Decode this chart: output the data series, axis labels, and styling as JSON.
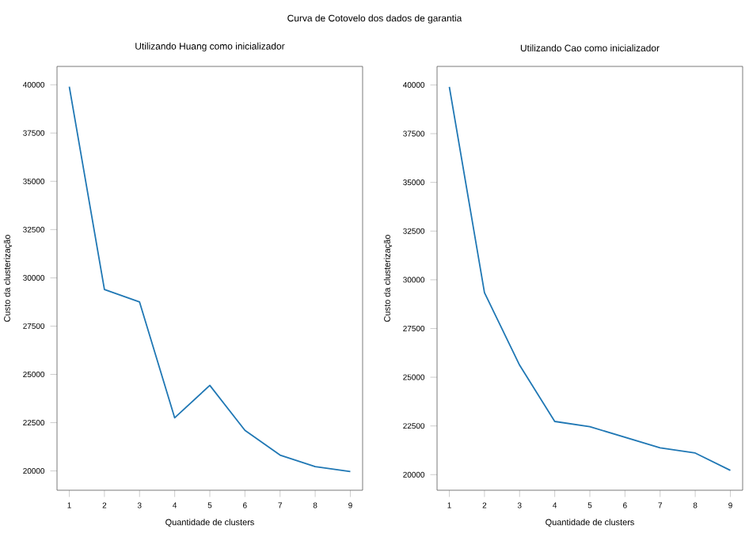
{
  "chart_data": [
    {
      "type": "line",
      "title": "Utilizando Huang como inicializador",
      "xlabel": "Quantidade de clusters",
      "ylabel": "Custo da clusterização",
      "annotations": [
        "Curva de Cotovelo dos dados de garantia"
      ],
      "x": [
        1,
        2,
        3,
        4,
        5,
        6,
        7,
        8,
        9
      ],
      "xlim": [
        0.65,
        9.35
      ],
      "xticks": [
        1,
        2,
        3,
        4,
        5,
        6,
        7,
        8,
        9
      ],
      "ylim": [
        19000,
        40950
      ],
      "yticks": [
        20000,
        22500,
        25000,
        27500,
        30000,
        32500,
        35000,
        37500,
        40000
      ],
      "series": [
        {
          "color": "#1f77b4",
          "values": [
            39900,
            29400,
            28750,
            22750,
            24430,
            22100,
            20820,
            20220,
            19970
          ]
        }
      ]
    },
    {
      "type": "line",
      "title": "Utilizando Cao como inicializador",
      "xlabel": "Quantidade de clusters",
      "ylabel": "Custo da clusterização",
      "x": [
        1,
        2,
        3,
        4,
        5,
        6,
        7,
        8,
        9
      ],
      "xlim": [
        0.65,
        9.35
      ],
      "xticks": [
        1,
        2,
        3,
        4,
        5,
        6,
        7,
        8,
        9
      ],
      "ylim": [
        19200,
        40950
      ],
      "yticks": [
        20000,
        22500,
        25000,
        27500,
        30000,
        32500,
        35000,
        37500,
        40000
      ],
      "series": [
        {
          "color": "#1f77b4",
          "values": [
            39900,
            29340,
            25620,
            22730,
            22460,
            21920,
            21380,
            21110,
            20220
          ]
        }
      ]
    }
  ]
}
